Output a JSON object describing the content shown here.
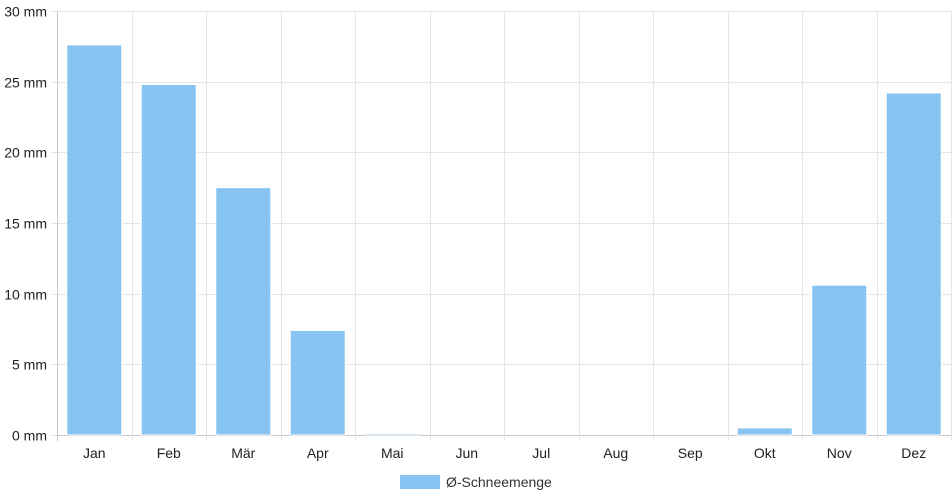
{
  "chart_data": {
    "type": "bar",
    "categories": [
      "Jan",
      "Feb",
      "Mär",
      "Apr",
      "Mai",
      "Jun",
      "Jul",
      "Aug",
      "Sep",
      "Okt",
      "Nov",
      "Dez"
    ],
    "series": [
      {
        "name": "Ø-Schneemenge",
        "values": [
          27.6,
          24.8,
          17.5,
          7.4,
          0.1,
          0,
          0,
          0,
          0,
          0.5,
          10.6,
          24.2
        ],
        "color": "#88c4f1"
      }
    ],
    "yticks": [
      0,
      5,
      10,
      15,
      20,
      25,
      30
    ],
    "ytick_labels": [
      "0 mm",
      "5 mm",
      "10 mm",
      "15 mm",
      "20 mm",
      "25 mm",
      "30 mm"
    ],
    "ylim": [
      0,
      30
    ],
    "grid": true,
    "legend_position": "bottom-center",
    "colors": {
      "grid": "#e5e5e5",
      "axis": "#c8c8c8",
      "bar_stroke": "#ffffff"
    }
  }
}
